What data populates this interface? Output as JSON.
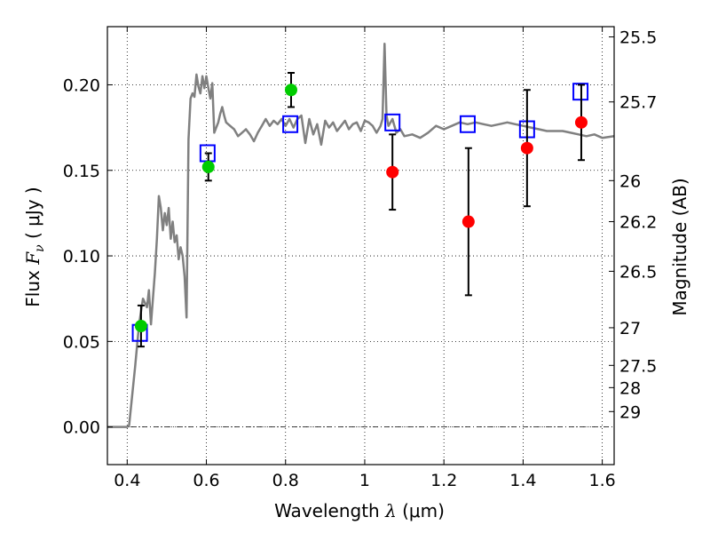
{
  "chart_data": {
    "type": "scatter",
    "xlabel": "Wavelength",
    "xlabel_math": "λ",
    "xlabel_unit": "(μm)",
    "ylabel": "Flux",
    "ylabel_math": "F",
    "ylabel_math_sub": "ν",
    "ylabel_unit": "( μJy )",
    "ylabel_right": "Magnitude (AB)",
    "xlim": [
      0.35,
      1.63
    ],
    "ylim": [
      -0.022,
      0.234
    ],
    "grid": true,
    "x_ticks": [
      0.4,
      0.6,
      0.8,
      1.0,
      1.2,
      1.4,
      1.6
    ],
    "x_tick_labels": [
      "0.4",
      "0.6",
      "0.8",
      "1",
      "1.2",
      "1.4",
      "1.6"
    ],
    "y_ticks": [
      0.0,
      0.05,
      0.1,
      0.15,
      0.2
    ],
    "y_tick_labels": [
      "0.00",
      "0.05",
      "0.10",
      "0.15",
      "0.20"
    ],
    "mag_ticks": [
      {
        "label": "25.5",
        "flux": 0.228
      },
      {
        "label": "25.7",
        "flux": 0.19
      },
      {
        "label": "26",
        "flux": 0.144
      },
      {
        "label": "26.2",
        "flux": 0.12
      },
      {
        "label": "26.5",
        "flux": 0.091
      },
      {
        "label": "27",
        "flux": 0.058
      },
      {
        "label": "27.5",
        "flux": 0.036
      },
      {
        "label": "28",
        "flux": 0.023
      },
      {
        "label": "29",
        "flux": 0.009
      }
    ],
    "zero_line": 0.0,
    "model_spectrum": {
      "color": "#808080",
      "x": [
        0.35,
        0.4,
        0.405,
        0.42,
        0.43,
        0.44,
        0.45,
        0.455,
        0.46,
        0.465,
        0.47,
        0.475,
        0.48,
        0.485,
        0.49,
        0.495,
        0.5,
        0.505,
        0.51,
        0.515,
        0.52,
        0.525,
        0.53,
        0.535,
        0.54,
        0.545,
        0.55,
        0.555,
        0.56,
        0.565,
        0.57,
        0.575,
        0.58,
        0.585,
        0.59,
        0.595,
        0.6,
        0.605,
        0.61,
        0.615,
        0.62,
        0.63,
        0.635,
        0.64,
        0.645,
        0.65,
        0.66,
        0.67,
        0.68,
        0.69,
        0.7,
        0.71,
        0.72,
        0.73,
        0.74,
        0.75,
        0.76,
        0.77,
        0.78,
        0.79,
        0.8,
        0.81,
        0.82,
        0.83,
        0.84,
        0.85,
        0.86,
        0.87,
        0.88,
        0.89,
        0.9,
        0.91,
        0.92,
        0.93,
        0.94,
        0.95,
        0.96,
        0.97,
        0.98,
        0.99,
        1.0,
        1.01,
        1.02,
        1.03,
        1.04,
        1.045,
        1.05,
        1.055,
        1.06,
        1.07,
        1.08,
        1.09,
        1.1,
        1.12,
        1.14,
        1.16,
        1.18,
        1.2,
        1.22,
        1.24,
        1.26,
        1.28,
        1.3,
        1.32,
        1.34,
        1.36,
        1.38,
        1.4,
        1.42,
        1.44,
        1.46,
        1.48,
        1.5,
        1.52,
        1.54,
        1.56,
        1.58,
        1.6,
        1.63
      ],
      "y": [
        0.0,
        0.0,
        0.001,
        0.035,
        0.06,
        0.075,
        0.07,
        0.08,
        0.06,
        0.075,
        0.09,
        0.11,
        0.135,
        0.128,
        0.115,
        0.125,
        0.118,
        0.128,
        0.11,
        0.12,
        0.108,
        0.112,
        0.098,
        0.105,
        0.1,
        0.088,
        0.064,
        0.168,
        0.192,
        0.195,
        0.193,
        0.206,
        0.199,
        0.195,
        0.205,
        0.198,
        0.205,
        0.198,
        0.192,
        0.201,
        0.172,
        0.178,
        0.183,
        0.187,
        0.182,
        0.178,
        0.176,
        0.174,
        0.17,
        0.172,
        0.174,
        0.171,
        0.167,
        0.172,
        0.176,
        0.18,
        0.176,
        0.179,
        0.177,
        0.18,
        0.176,
        0.18,
        0.175,
        0.18,
        0.182,
        0.166,
        0.18,
        0.171,
        0.177,
        0.165,
        0.179,
        0.175,
        0.178,
        0.173,
        0.176,
        0.179,
        0.174,
        0.177,
        0.178,
        0.173,
        0.179,
        0.178,
        0.176,
        0.172,
        0.176,
        0.18,
        0.224,
        0.182,
        0.176,
        0.18,
        0.172,
        0.174,
        0.17,
        0.171,
        0.169,
        0.172,
        0.176,
        0.174,
        0.176,
        0.178,
        0.177,
        0.178,
        0.177,
        0.176,
        0.177,
        0.178,
        0.177,
        0.176,
        0.175,
        0.174,
        0.173,
        0.173,
        0.173,
        0.172,
        0.171,
        0.17,
        0.171,
        0.169,
        0.17
      ]
    },
    "series": [
      {
        "marker": "square-open",
        "color": "#0000ff",
        "x": [
          0.432,
          0.603,
          0.812,
          1.07,
          1.26,
          1.41,
          1.545
        ],
        "y": [
          0.055,
          0.16,
          0.177,
          0.178,
          0.177,
          0.174,
          0.196
        ]
      },
      {
        "marker": "circle",
        "color": "#00cc00",
        "x": [
          0.435,
          0.605,
          0.814
        ],
        "y": [
          0.059,
          0.152,
          0.197
        ],
        "yerr": [
          0.012,
          0.008,
          0.01
        ]
      },
      {
        "marker": "circle",
        "color": "#ff0000",
        "x": [
          1.07,
          1.262,
          1.41,
          1.547
        ],
        "y": [
          0.149,
          0.12,
          0.163,
          0.178
        ],
        "yerr": [
          0.022,
          0.043,
          0.034,
          0.022
        ]
      }
    ]
  }
}
